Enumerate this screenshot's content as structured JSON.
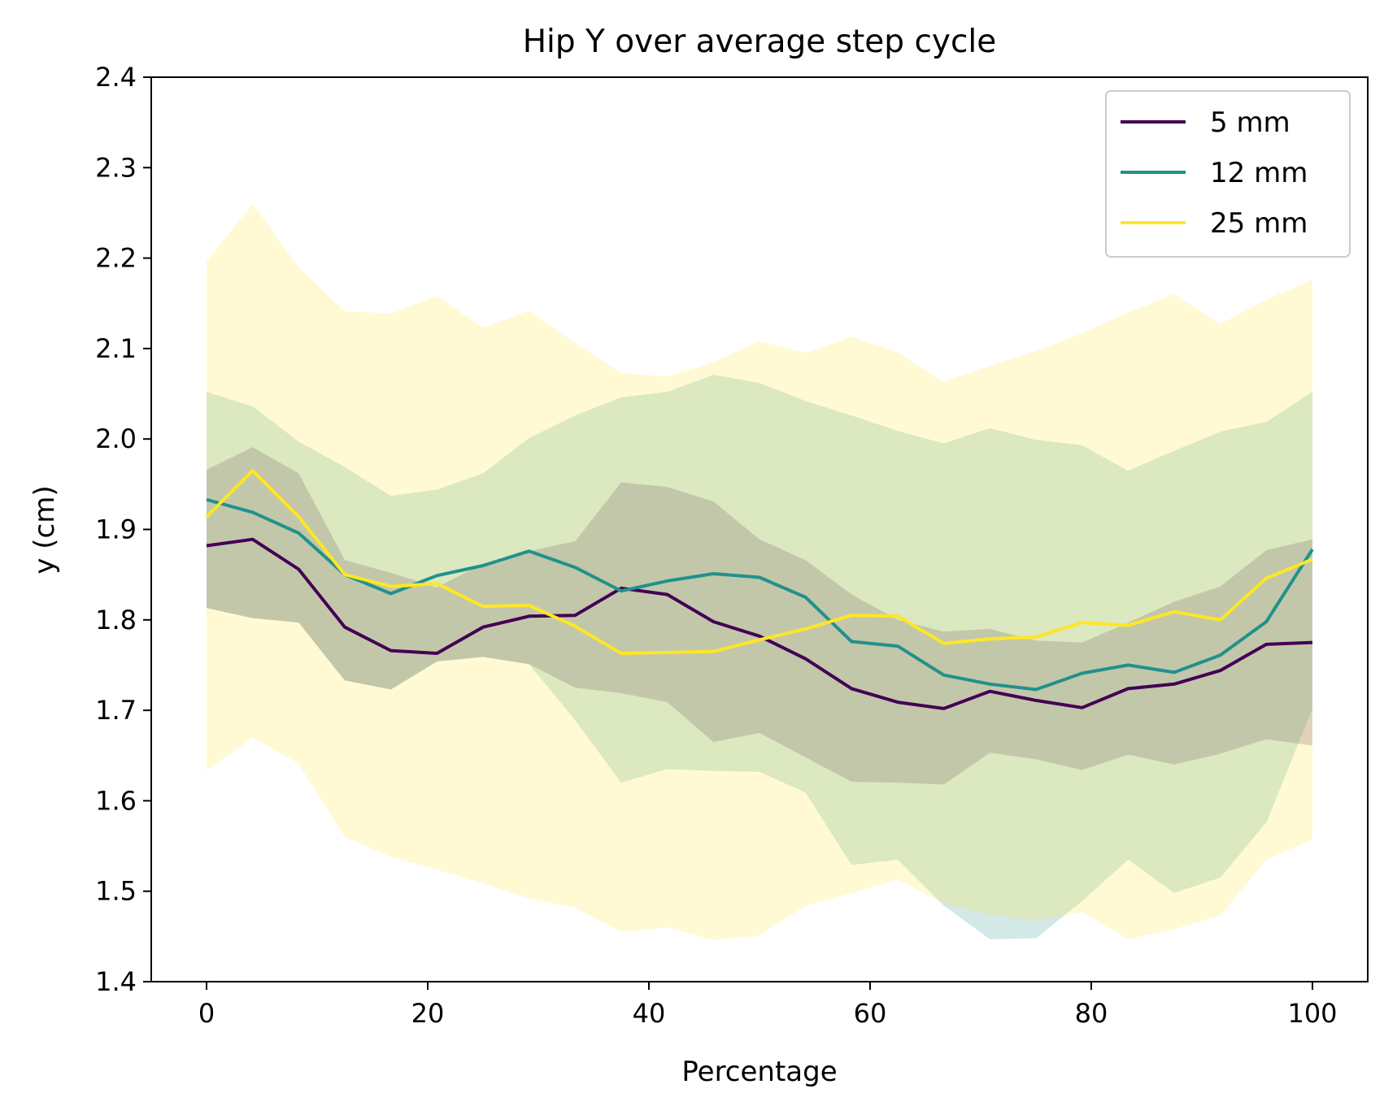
{
  "chart_data": {
    "type": "line",
    "title": "Hip Y over average step cycle",
    "xlabel": "Percentage",
    "ylabel": "y (cm)",
    "xlim": [
      -5,
      105
    ],
    "ylim": [
      1.4,
      2.4
    ],
    "xticks": [
      0,
      20,
      40,
      60,
      80,
      100
    ],
    "xtick_labels": [
      "0",
      "20",
      "40",
      "60",
      "80",
      "100"
    ],
    "yticks": [
      1.4,
      1.5,
      1.6,
      1.7,
      1.8,
      1.9,
      2.0,
      2.1,
      2.2,
      2.3,
      2.4
    ],
    "ytick_labels": [
      "1.4",
      "1.5",
      "1.6",
      "1.7",
      "1.8",
      "1.9",
      "2.0",
      "2.1",
      "2.2",
      "2.3",
      "2.4"
    ],
    "grid": false,
    "legend_position": "top-right",
    "x": [
      0,
      4.17,
      8.33,
      12.5,
      16.67,
      20.83,
      25,
      29.17,
      33.33,
      37.5,
      41.67,
      45.83,
      50,
      54.17,
      58.33,
      62.5,
      66.67,
      70.83,
      75,
      79.17,
      83.33,
      87.5,
      91.67,
      95.83,
      100
    ],
    "series": [
      {
        "name": "5 mm",
        "color": "#440154",
        "band_opacity": 0.2,
        "values": [
          1.882,
          1.889,
          1.856,
          1.792,
          1.766,
          1.763,
          1.792,
          1.804,
          1.805,
          1.835,
          1.828,
          1.798,
          1.782,
          1.757,
          1.724,
          1.709,
          1.702,
          1.721,
          1.711,
          1.703,
          1.724,
          1.729,
          1.744,
          1.773,
          1.775
        ],
        "upper": [
          1.966,
          1.991,
          1.962,
          1.866,
          1.852,
          1.836,
          1.862,
          1.876,
          1.887,
          1.952,
          1.947,
          1.931,
          1.889,
          1.866,
          1.828,
          1.8,
          1.787,
          1.79,
          1.777,
          1.775,
          1.797,
          1.82,
          1.837,
          1.877,
          1.889
        ],
        "lower": [
          1.813,
          1.802,
          1.797,
          1.733,
          1.723,
          1.754,
          1.759,
          1.751,
          1.725,
          1.719,
          1.709,
          1.665,
          1.675,
          1.648,
          1.621,
          1.62,
          1.618,
          1.653,
          1.646,
          1.634,
          1.651,
          1.64,
          1.652,
          1.668,
          1.661
        ]
      },
      {
        "name": "12 mm",
        "color": "#21918c",
        "band_opacity": 0.2,
        "values": [
          1.933,
          1.919,
          1.896,
          1.85,
          1.829,
          1.849,
          1.86,
          1.876,
          1.858,
          1.832,
          1.843,
          1.851,
          1.847,
          1.825,
          1.776,
          1.771,
          1.739,
          1.729,
          1.723,
          1.741,
          1.75,
          1.742,
          1.761,
          1.798,
          1.878
        ],
        "upper": [
          2.052,
          2.036,
          1.997,
          1.969,
          1.937,
          1.944,
          1.962,
          2.001,
          2.026,
          2.046,
          2.052,
          2.071,
          2.062,
          2.042,
          2.026,
          2.009,
          1.995,
          2.012,
          1.999,
          1.993,
          1.965,
          1.987,
          2.008,
          2.019,
          2.052
        ],
        "lower": [
          1.813,
          1.802,
          1.797,
          1.733,
          1.723,
          1.754,
          1.759,
          1.751,
          1.689,
          1.62,
          1.635,
          1.633,
          1.632,
          1.609,
          1.529,
          1.535,
          1.484,
          1.447,
          1.448,
          1.489,
          1.535,
          1.498,
          1.515,
          1.576,
          1.702
        ]
      },
      {
        "name": "25 mm",
        "color": "#fde725",
        "band_opacity": 0.2,
        "values": [
          1.914,
          1.965,
          1.914,
          1.85,
          1.837,
          1.84,
          1.815,
          1.816,
          1.793,
          1.763,
          1.764,
          1.765,
          1.778,
          1.79,
          1.805,
          1.804,
          1.774,
          1.779,
          1.781,
          1.797,
          1.794,
          1.809,
          1.8,
          1.846,
          1.867
        ],
        "upper": [
          2.196,
          2.26,
          2.19,
          2.141,
          2.139,
          2.158,
          2.123,
          2.142,
          2.106,
          2.073,
          2.069,
          2.085,
          2.108,
          2.095,
          2.113,
          2.096,
          2.063,
          2.081,
          2.097,
          2.117,
          2.14,
          2.16,
          2.127,
          2.154,
          2.176
        ],
        "lower": [
          1.633,
          1.67,
          1.641,
          1.56,
          1.538,
          1.524,
          1.509,
          1.492,
          1.482,
          1.455,
          1.46,
          1.446,
          1.451,
          1.484,
          1.498,
          1.513,
          1.486,
          1.474,
          1.467,
          1.477,
          1.447,
          1.458,
          1.473,
          1.535,
          1.557
        ]
      }
    ]
  }
}
